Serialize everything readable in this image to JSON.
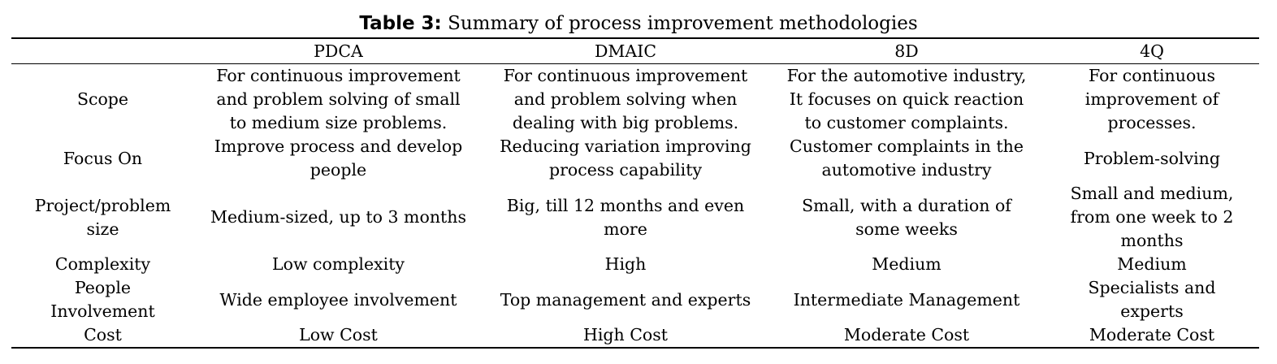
{
  "caption": {
    "label": "Table 3:",
    "text": "Summary of process improvement methodologies"
  },
  "table": {
    "headers": [
      "",
      "PDCA",
      "DMAIC",
      "8D",
      "4Q"
    ],
    "rows": [
      {
        "label": [
          "Scope"
        ],
        "cells": [
          [
            "For continuous improvement",
            "and problem solving of small",
            "to medium size problems."
          ],
          [
            "For continuous improvement",
            "and problem solving when",
            "dealing with big problems."
          ],
          [
            "For the automotive industry,",
            "It focuses on quick reaction",
            "to customer complaints."
          ],
          [
            "For continuous",
            "improvement of",
            "processes."
          ]
        ]
      },
      {
        "label": [
          "Focus On"
        ],
        "cells": [
          [
            "Improve process and develop",
            "people"
          ],
          [
            "Reducing variation improving",
            "process capability"
          ],
          [
            "Customer complaints in the",
            "automotive industry"
          ],
          [
            "Problem-solving"
          ]
        ]
      },
      {
        "label": [
          "Project/problem",
          "size"
        ],
        "cells": [
          [
            "Medium-sized, up to 3 months"
          ],
          [
            "Big, till 12 months and even",
            "more"
          ],
          [
            "Small, with a duration of",
            "some weeks"
          ],
          [
            "Small and medium,",
            "from one week to 2",
            "months"
          ]
        ]
      },
      {
        "label": [
          "Complexity"
        ],
        "cells": [
          [
            "Low complexity"
          ],
          [
            "High"
          ],
          [
            "Medium"
          ],
          [
            "Medium"
          ]
        ]
      },
      {
        "label": [
          "People",
          "Involvement"
        ],
        "cells": [
          [
            "Wide employee involvement"
          ],
          [
            "Top management and experts"
          ],
          [
            "Intermediate Management"
          ],
          [
            "Specialists and",
            "experts"
          ]
        ]
      },
      {
        "label": [
          "Cost"
        ],
        "cells": [
          [
            "Low Cost"
          ],
          [
            "High Cost"
          ],
          [
            "Moderate Cost"
          ],
          [
            "Moderate Cost"
          ]
        ]
      }
    ]
  }
}
